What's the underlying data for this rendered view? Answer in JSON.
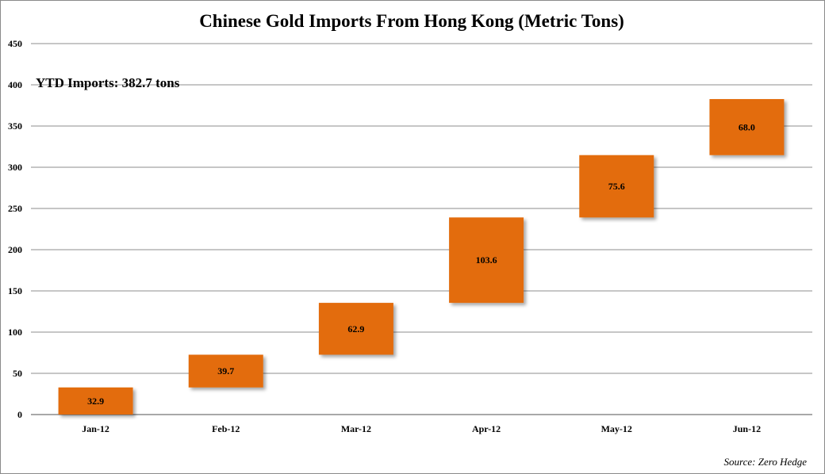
{
  "chart_data": {
    "type": "bar",
    "subtype": "waterfall",
    "title": "Chinese Gold Imports From Hong Kong (Metric Tons)",
    "xlabel": "",
    "ylabel": "",
    "ylim": [
      0,
      450
    ],
    "yticks": [
      0,
      50,
      100,
      150,
      200,
      250,
      300,
      350,
      400,
      450
    ],
    "grid": true,
    "categories": [
      "Jan-12",
      "Feb-12",
      "Mar-12",
      "Apr-12",
      "May-12",
      "Jun-12"
    ],
    "values": [
      32.9,
      39.7,
      62.9,
      103.6,
      75.6,
      68.0
    ],
    "data_labels": [
      "32.9",
      "39.7",
      "62.9",
      "103.6",
      "75.6",
      "68.0"
    ],
    "reference_line": {
      "value": 382.7,
      "label": "YTD Imports: 382.7 tons",
      "color": "#e00000"
    },
    "bar_color": "#e36c0a",
    "source": "Source: Zero Hedge"
  }
}
